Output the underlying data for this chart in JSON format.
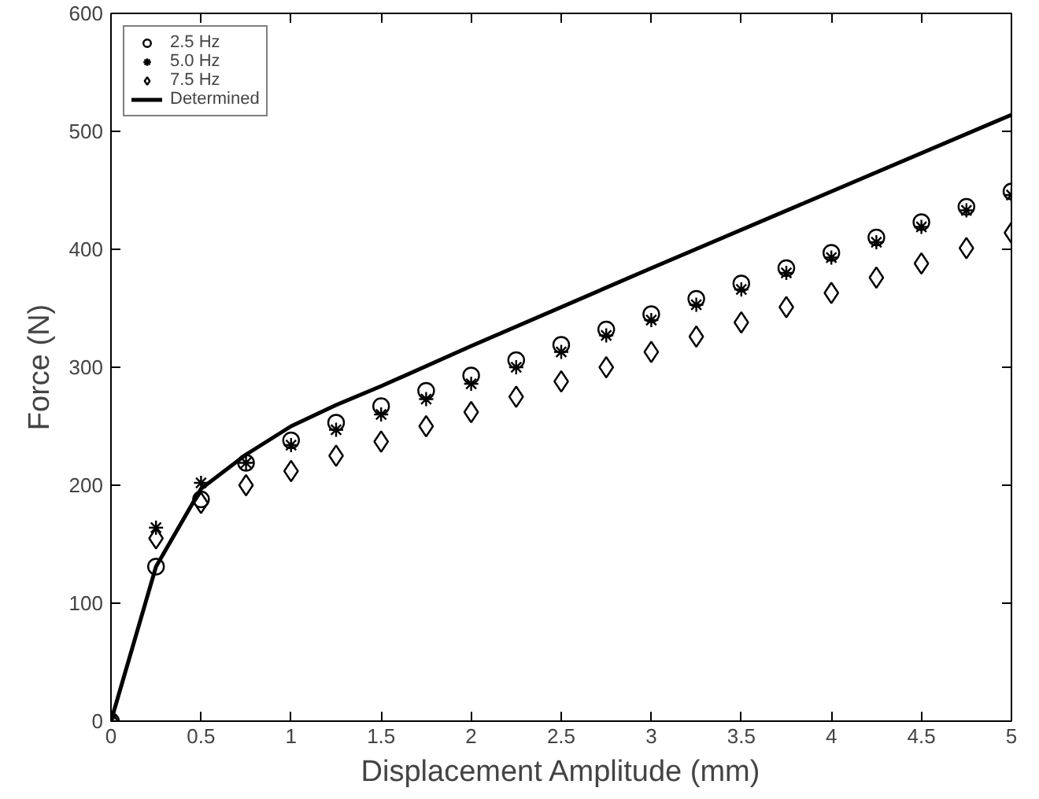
{
  "chart_data": {
    "type": "scatter",
    "xlabel": "Displacement Amplitude (mm)",
    "ylabel": "Force (N)",
    "x": [
      0,
      0.25,
      0.5,
      0.75,
      1,
      1.25,
      1.5,
      1.75,
      2,
      2.25,
      2.5,
      2.75,
      3,
      3.25,
      3.5,
      3.75,
      4,
      4.25,
      4.5,
      4.75,
      5
    ],
    "series": [
      {
        "name": "2.5 Hz",
        "color": "#000000",
        "marker": "circle",
        "values": [
          0,
          131,
          188,
          219,
          238,
          253,
          267,
          280,
          293,
          306,
          319,
          332,
          345,
          358,
          371,
          384,
          397,
          410,
          423,
          436,
          449
        ]
      },
      {
        "name": "5.0 Hz",
        "color": "#000000",
        "marker": "cross",
        "values": [
          0,
          164,
          202,
          219,
          234,
          247,
          260,
          273,
          286,
          300,
          313,
          327,
          340,
          353,
          366,
          380,
          393,
          406,
          419,
          433,
          446
        ]
      },
      {
        "name": "7.5 Hz",
        "color": "#000000",
        "marker": "diamond",
        "values": [
          0,
          155,
          185,
          200,
          212,
          225,
          237,
          250,
          262,
          275,
          288,
          300,
          313,
          326,
          338,
          351,
          363,
          376,
          388,
          401,
          414
        ]
      },
      {
        "name": "Determined",
        "type": "line",
        "color": "#000000",
        "marker": "none",
        "line_style": "solid",
        "x": [
          0,
          0.25,
          0.5,
          0.75,
          1,
          1.25,
          1.5,
          2,
          3,
          4,
          5
        ],
        "values": [
          0,
          131,
          197,
          226,
          250,
          268,
          284,
          318,
          384,
          449,
          514
        ]
      }
    ],
    "xlim": [
      0,
      5
    ],
    "ylim": [
      0,
      600
    ],
    "xticks": [
      0,
      0.5,
      1,
      1.5,
      2,
      2.5,
      3,
      3.5,
      4,
      4.5,
      5
    ],
    "yticks": [
      0,
      100,
      200,
      300,
      400,
      500,
      600
    ],
    "grid": false,
    "legend": "top left"
  }
}
